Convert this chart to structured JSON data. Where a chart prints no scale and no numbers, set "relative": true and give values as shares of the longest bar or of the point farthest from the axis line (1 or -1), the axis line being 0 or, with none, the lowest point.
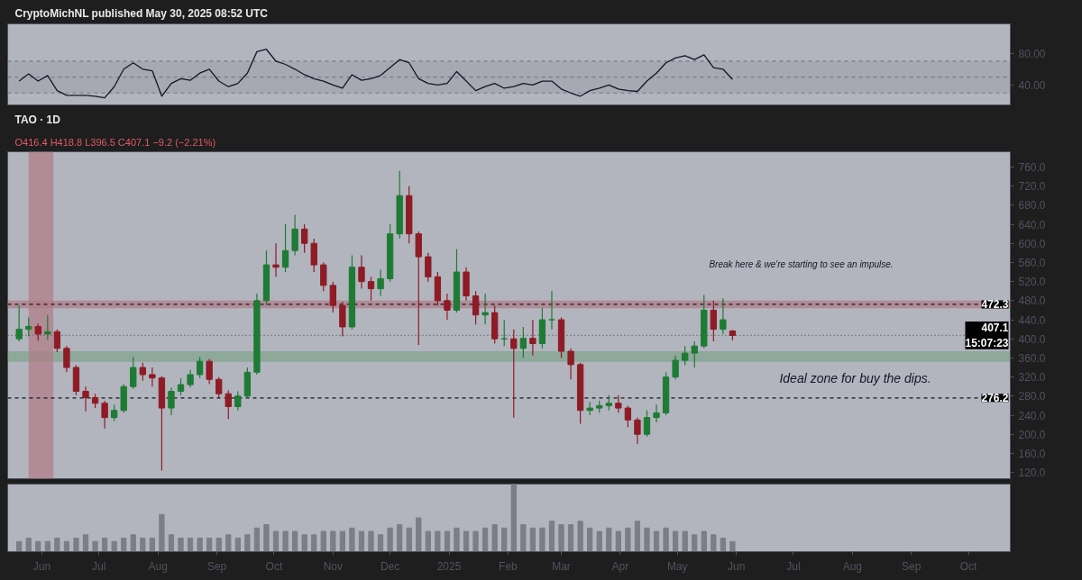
{
  "chart_data": [
    {
      "type": "line",
      "title": "CryptoMichNL published May 30, 2025 08:52 UTC",
      "x": [
        "2024-05-20",
        "2024-05-25",
        "2024-05-30",
        "2024-06-04",
        "2024-06-09",
        "2024-06-14",
        "2024-06-19",
        "2024-06-24",
        "2024-06-29",
        "2024-07-04",
        "2024-07-09",
        "2024-07-14",
        "2024-07-19",
        "2024-07-24",
        "2024-07-29",
        "2024-08-03",
        "2024-08-08",
        "2024-08-13",
        "2024-08-18",
        "2024-08-23",
        "2024-08-28",
        "2024-09-02",
        "2024-09-07",
        "2024-09-12",
        "2024-09-17",
        "2024-09-22",
        "2024-09-27",
        "2024-10-02",
        "2024-10-07",
        "2024-10-12",
        "2024-10-17",
        "2024-10-22",
        "2024-10-27",
        "2024-11-01",
        "2024-11-06",
        "2024-11-11",
        "2024-11-16",
        "2024-11-21",
        "2024-11-26",
        "2024-12-01",
        "2024-12-06",
        "2024-12-11",
        "2024-12-16",
        "2024-12-21",
        "2024-12-26",
        "2024-12-31",
        "2025-01-05",
        "2025-01-10",
        "2025-01-15",
        "2025-01-20",
        "2025-01-25",
        "2025-01-30",
        "2025-02-04",
        "2025-02-09",
        "2025-02-14",
        "2025-02-19",
        "2025-02-24",
        "2025-03-01",
        "2025-03-06",
        "2025-03-11",
        "2025-03-16",
        "2025-03-21",
        "2025-03-26",
        "2025-03-31",
        "2025-04-05",
        "2025-04-10",
        "2025-04-15",
        "2025-04-20",
        "2025-04-25",
        "2025-04-30",
        "2025-05-05",
        "2025-05-10",
        "2025-05-15",
        "2025-05-20",
        "2025-05-25",
        "2025-05-30"
      ],
      "series": [
        {
          "color": "#131722",
          "values": [
            45,
            54,
            45,
            52,
            33,
            27,
            27,
            27,
            26,
            24,
            38,
            60,
            68,
            60,
            58,
            26,
            42,
            48,
            46,
            55,
            60,
            45,
            38,
            42,
            55,
            82,
            85,
            70,
            66,
            60,
            53,
            48,
            45,
            40,
            36,
            53,
            46,
            48,
            52,
            62,
            72,
            68,
            48,
            42,
            40,
            42,
            57,
            45,
            33,
            38,
            42,
            36,
            38,
            42,
            40,
            45,
            45,
            35,
            30,
            26,
            33,
            36,
            40,
            35,
            33,
            32,
            45,
            55,
            68,
            74,
            77,
            72,
            78,
            62,
            60,
            47
          ]
        }
      ],
      "xlim": [
        "2024-05-14",
        "2025-10-23"
      ],
      "ylim": [
        15,
        117
      ],
      "yticks": [
        {
          "value": 80,
          "label": "80.00"
        },
        {
          "value": 40,
          "label": "40.00"
        }
      ],
      "ref_lines": [
        {
          "axis": "y",
          "value": 70,
          "color": "#787b86",
          "line_style": "dashed"
        },
        {
          "axis": "y",
          "value": 50,
          "color": "#787b86",
          "line_style": "dashed"
        },
        {
          "axis": "y",
          "value": 30,
          "color": "#787b86",
          "line_style": "dashed"
        }
      ],
      "bands": [
        {
          "axis": "y",
          "from": 30,
          "to": 70,
          "color": "#9a9da6"
        }
      ],
      "tick_labels": "y",
      "grid": false,
      "marker": "none",
      "line_style": "solid"
    },
    {
      "type": "candlestick",
      "title": "TAO · 1D",
      "subtitle": "O416.4 H418.8 L396.5 C407.1 −9.2 (−2.21%)",
      "x": [
        "2024-05-20",
        "2024-05-25",
        "2024-05-30",
        "2024-06-04",
        "2024-06-09",
        "2024-06-14",
        "2024-06-19",
        "2024-06-24",
        "2024-06-29",
        "2024-07-04",
        "2024-07-09",
        "2024-07-14",
        "2024-07-19",
        "2024-07-24",
        "2024-07-29",
        "2024-08-03",
        "2024-08-08",
        "2024-08-13",
        "2024-08-18",
        "2024-08-23",
        "2024-08-28",
        "2024-09-02",
        "2024-09-07",
        "2024-09-12",
        "2024-09-17",
        "2024-09-22",
        "2024-09-27",
        "2024-10-02",
        "2024-10-07",
        "2024-10-12",
        "2024-10-17",
        "2024-10-22",
        "2024-10-27",
        "2024-11-01",
        "2024-11-06",
        "2024-11-11",
        "2024-11-16",
        "2024-11-21",
        "2024-11-26",
        "2024-12-01",
        "2024-12-06",
        "2024-12-11",
        "2024-12-16",
        "2024-12-21",
        "2024-12-26",
        "2024-12-31",
        "2025-01-05",
        "2025-01-10",
        "2025-01-15",
        "2025-01-20",
        "2025-01-25",
        "2025-01-30",
        "2025-02-04",
        "2025-02-09",
        "2025-02-14",
        "2025-02-19",
        "2025-02-24",
        "2025-03-01",
        "2025-03-06",
        "2025-03-11",
        "2025-03-16",
        "2025-03-21",
        "2025-03-26",
        "2025-03-31",
        "2025-04-05",
        "2025-04-10",
        "2025-04-15",
        "2025-04-20",
        "2025-04-25",
        "2025-04-30",
        "2025-05-05",
        "2025-05-10",
        "2025-05-15",
        "2025-05-20",
        "2025-05-25",
        "2025-05-30"
      ],
      "ohlc": [
        [
          400,
          470,
          395,
          420
        ],
        [
          420,
          445,
          405,
          426
        ],
        [
          426,
          432,
          396,
          410
        ],
        [
          410,
          450,
          398,
          415
        ],
        [
          415,
          420,
          372,
          380
        ],
        [
          380,
          385,
          330,
          340
        ],
        [
          340,
          345,
          282,
          290
        ],
        [
          290,
          300,
          248,
          277
        ],
        [
          277,
          285,
          255,
          265
        ],
        [
          265,
          270,
          212,
          235
        ],
        [
          235,
          262,
          228,
          250
        ],
        [
          250,
          305,
          245,
          300
        ],
        [
          300,
          362,
          295,
          340
        ],
        [
          340,
          350,
          312,
          325
        ],
        [
          325,
          340,
          300,
          318
        ],
        [
          318,
          322,
          124,
          255
        ],
        [
          255,
          298,
          240,
          290
        ],
        [
          290,
          318,
          282,
          304
        ],
        [
          304,
          335,
          298,
          325
        ],
        [
          325,
          362,
          318,
          353
        ],
        [
          353,
          358,
          305,
          315
        ],
        [
          315,
          320,
          275,
          285
        ],
        [
          285,
          292,
          232,
          258
        ],
        [
          258,
          290,
          250,
          280
        ],
        [
          280,
          340,
          275,
          330
        ],
        [
          330,
          495,
          325,
          480
        ],
        [
          480,
          585,
          470,
          555
        ],
        [
          555,
          600,
          530,
          550
        ],
        [
          550,
          640,
          540,
          585
        ],
        [
          585,
          660,
          575,
          630
        ],
        [
          630,
          640,
          580,
          600
        ],
        [
          600,
          610,
          540,
          555
        ],
        [
          555,
          560,
          500,
          512
        ],
        [
          512,
          520,
          455,
          470
        ],
        [
          470,
          478,
          405,
          425
        ],
        [
          425,
          575,
          420,
          550
        ],
        [
          550,
          575,
          505,
          520
        ],
        [
          520,
          530,
          480,
          505
        ],
        [
          505,
          545,
          490,
          526
        ],
        [
          526,
          640,
          520,
          620
        ],
        [
          620,
          752,
          610,
          700
        ],
        [
          700,
          720,
          600,
          620
        ],
        [
          620,
          625,
          387,
          572
        ],
        [
          572,
          580,
          520,
          530
        ],
        [
          530,
          540,
          470,
          480
        ],
        [
          480,
          495,
          440,
          460
        ],
        [
          460,
          588,
          455,
          540
        ],
        [
          540,
          550,
          480,
          490
        ],
        [
          490,
          500,
          430,
          450
        ],
        [
          450,
          495,
          430,
          455
        ],
        [
          455,
          470,
          390,
          400
        ],
        [
          400,
          440,
          385,
          400
        ],
        [
          400,
          420,
          235,
          380
        ],
        [
          380,
          425,
          360,
          401
        ],
        [
          401,
          440,
          365,
          390
        ],
        [
          390,
          465,
          380,
          440
        ],
        [
          440,
          500,
          420,
          440
        ],
        [
          440,
          445,
          360,
          374
        ],
        [
          374,
          380,
          315,
          346
        ],
        [
          346,
          350,
          222,
          250
        ],
        [
          250,
          268,
          240,
          255
        ],
        [
          255,
          270,
          245,
          260
        ],
        [
          260,
          282,
          250,
          265
        ],
        [
          265,
          282,
          245,
          255
        ],
        [
          255,
          260,
          215,
          230
        ],
        [
          230,
          235,
          180,
          200
        ],
        [
          200,
          250,
          195,
          235
        ],
        [
          235,
          262,
          225,
          245
        ],
        [
          245,
          330,
          240,
          320
        ],
        [
          320,
          365,
          315,
          355
        ],
        [
          355,
          385,
          345,
          370
        ],
        [
          370,
          395,
          340,
          385
        ],
        [
          385,
          492,
          380,
          460
        ],
        [
          460,
          480,
          395,
          420
        ],
        [
          420,
          485,
          410,
          440
        ],
        [
          416.4,
          418.8,
          396.5,
          407.1
        ]
      ],
      "colors": [
        "#1e7b34",
        "#1e7b34",
        "#8e1b25",
        "#1e7b34",
        "#8e1b25",
        "#8e1b25",
        "#8e1b25",
        "#8e1b25",
        "#8e1b25",
        "#8e1b25",
        "#1e7b34",
        "#1e7b34",
        "#1e7b34",
        "#8e1b25",
        "#8e1b25",
        "#8e1b25",
        "#1e7b34",
        "#1e7b34",
        "#1e7b34",
        "#1e7b34",
        "#8e1b25",
        "#8e1b25",
        "#8e1b25",
        "#1e7b34",
        "#1e7b34",
        "#1e7b34",
        "#1e7b34",
        "#8e1b25",
        "#1e7b34",
        "#1e7b34",
        "#8e1b25",
        "#8e1b25",
        "#8e1b25",
        "#8e1b25",
        "#8e1b25",
        "#1e7b34",
        "#8e1b25",
        "#8e1b25",
        "#1e7b34",
        "#1e7b34",
        "#1e7b34",
        "#8e1b25",
        "#8e1b25",
        "#8e1b25",
        "#8e1b25",
        "#8e1b25",
        "#1e7b34",
        "#8e1b25",
        "#8e1b25",
        "#1e7b34",
        "#8e1b25",
        "#1e7b34",
        "#8e1b25",
        "#1e7b34",
        "#8e1b25",
        "#1e7b34",
        "#1e7b34",
        "#8e1b25",
        "#8e1b25",
        "#8e1b25",
        "#1e7b34",
        "#1e7b34",
        "#1e7b34",
        "#8e1b25",
        "#8e1b25",
        "#8e1b25",
        "#1e7b34",
        "#1e7b34",
        "#1e7b34",
        "#1e7b34",
        "#1e7b34",
        "#1e7b34",
        "#1e7b34",
        "#8e1b25",
        "#1e7b34",
        "#8e1b25"
      ],
      "xlim": [
        "2024-05-14",
        "2025-10-23"
      ],
      "ylim": [
        107,
        792
      ],
      "yticks": [
        {
          "value": 120,
          "label": "120.0"
        },
        {
          "value": 160,
          "label": "160.0"
        },
        {
          "value": 200,
          "label": "200.0"
        },
        {
          "value": 240,
          "label": "240.0"
        },
        {
          "value": 280,
          "label": "280.0"
        },
        {
          "value": 320,
          "label": "320.0"
        },
        {
          "value": 360,
          "label": "360.0"
        },
        {
          "value": 400,
          "label": "400.0"
        },
        {
          "value": 440,
          "label": "440.0"
        },
        {
          "value": 480,
          "label": "480.0"
        },
        {
          "value": 520,
          "label": "520.0"
        },
        {
          "value": 560,
          "label": "560.0"
        },
        {
          "value": 600,
          "label": "600.0"
        },
        {
          "value": 640,
          "label": "640.0"
        },
        {
          "value": 680,
          "label": "680.0"
        },
        {
          "value": 720,
          "label": "720.0"
        },
        {
          "value": 760,
          "label": "760.0"
        }
      ],
      "ref_lines": [
        {
          "axis": "y",
          "value": 472.3,
          "label": "472.3",
          "color": "#131722",
          "line_style": "dashed"
        },
        {
          "axis": "y",
          "value": 407.1,
          "label": "407.1\n15:07:23",
          "color": "#555861",
          "line_style": "dotted"
        },
        {
          "axis": "y",
          "value": 276.2,
          "label": "276.2",
          "color": "#131722",
          "line_style": "dashed"
        }
      ],
      "bands": [
        {
          "axis": "y",
          "from": 464,
          "to": 480,
          "color": "#b07a85"
        },
        {
          "axis": "y",
          "from": 352,
          "to": 374,
          "color": "#7fa38a"
        },
        {
          "axis": "x",
          "from": "2024-05-25",
          "to": "2024-06-07",
          "color": "#b07a85"
        }
      ],
      "annotations": [
        "Break here & we're starting to see an impulse.",
        "Ideal zone for buy the dips."
      ],
      "tick_labels": "y",
      "grid": false
    },
    {
      "type": "bar",
      "relative": true,
      "x": [
        "2024-05-20",
        "2024-05-25",
        "2024-05-30",
        "2024-06-04",
        "2024-06-09",
        "2024-06-14",
        "2024-06-19",
        "2024-06-24",
        "2024-06-29",
        "2024-07-04",
        "2024-07-09",
        "2024-07-14",
        "2024-07-19",
        "2024-07-24",
        "2024-07-29",
        "2024-08-03",
        "2024-08-08",
        "2024-08-13",
        "2024-08-18",
        "2024-08-23",
        "2024-08-28",
        "2024-09-02",
        "2024-09-07",
        "2024-09-12",
        "2024-09-17",
        "2024-09-22",
        "2024-09-27",
        "2024-10-02",
        "2024-10-07",
        "2024-10-12",
        "2024-10-17",
        "2024-10-22",
        "2024-10-27",
        "2024-11-01",
        "2024-11-06",
        "2024-11-11",
        "2024-11-16",
        "2024-11-21",
        "2024-11-26",
        "2024-12-01",
        "2024-12-06",
        "2024-12-11",
        "2024-12-16",
        "2024-12-21",
        "2024-12-26",
        "2024-12-31",
        "2025-01-05",
        "2025-01-10",
        "2025-01-15",
        "2025-01-20",
        "2025-01-25",
        "2025-01-30",
        "2025-02-04",
        "2025-02-09",
        "2025-02-14",
        "2025-02-19",
        "2025-02-24",
        "2025-03-01",
        "2025-03-06",
        "2025-03-11",
        "2025-03-16",
        "2025-03-21",
        "2025-03-26",
        "2025-03-31",
        "2025-04-05",
        "2025-04-10",
        "2025-04-15",
        "2025-04-20",
        "2025-04-25",
        "2025-04-30",
        "2025-05-05",
        "2025-05-10",
        "2025-05-15",
        "2025-05-20",
        "2025-05-25",
        "2025-05-30"
      ],
      "series": [
        {
          "color": "#7b7e86",
          "values": [
            0.15,
            0.2,
            0.15,
            0.15,
            0.2,
            0.15,
            0.2,
            0.25,
            0.15,
            0.2,
            0.15,
            0.2,
            0.25,
            0.2,
            0.2,
            0.55,
            0.25,
            0.2,
            0.2,
            0.2,
            0.2,
            0.2,
            0.25,
            0.2,
            0.25,
            0.35,
            0.4,
            0.3,
            0.3,
            0.3,
            0.25,
            0.25,
            0.3,
            0.3,
            0.3,
            0.35,
            0.3,
            0.3,
            0.25,
            0.35,
            0.4,
            0.35,
            0.5,
            0.3,
            0.3,
            0.3,
            0.35,
            0.3,
            0.3,
            0.35,
            0.4,
            0.35,
            1.0,
            0.4,
            0.35,
            0.35,
            0.45,
            0.4,
            0.4,
            0.45,
            0.35,
            0.3,
            0.35,
            0.3,
            0.35,
            0.45,
            0.35,
            0.3,
            0.35,
            0.3,
            0.3,
            0.25,
            0.3,
            0.25,
            0.2,
            0.15
          ]
        }
      ],
      "xlim": [
        "2024-05-14",
        "2025-10-23"
      ],
      "xticks": [
        {
          "value": "2024-06-01",
          "label": "Jun"
        },
        {
          "value": "2024-07-01",
          "label": "Jul"
        },
        {
          "value": "2024-08-01",
          "label": "Aug"
        },
        {
          "value": "2024-09-01",
          "label": "Sep"
        },
        {
          "value": "2024-10-01",
          "label": "Oct"
        },
        {
          "value": "2024-11-01",
          "label": "Nov"
        },
        {
          "value": "2024-12-01",
          "label": "Dec"
        },
        {
          "value": "2025-01-01",
          "label": "2025"
        },
        {
          "value": "2025-02-01",
          "label": "Feb"
        },
        {
          "value": "2025-03-01",
          "label": "Mar"
        },
        {
          "value": "2025-04-01",
          "label": "Apr"
        },
        {
          "value": "2025-05-01",
          "label": "May"
        },
        {
          "value": "2025-06-01",
          "label": "Jun"
        },
        {
          "value": "2025-07-01",
          "label": "Jul"
        },
        {
          "value": "2025-08-01",
          "label": "Aug"
        },
        {
          "value": "2025-09-01",
          "label": "Sep"
        },
        {
          "value": "2025-10-01",
          "label": "Oct"
        }
      ],
      "tick_labels": "x",
      "grid": false
    }
  ]
}
